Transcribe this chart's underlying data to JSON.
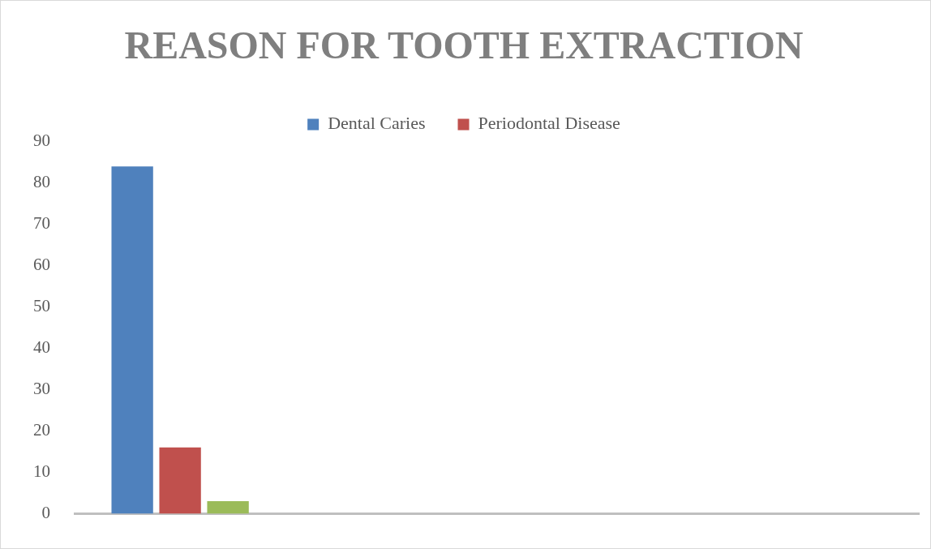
{
  "chart_data": {
    "type": "bar",
    "title": "REASON FOR TOOTH EXTRACTION",
    "categories": [
      null,
      null,
      null,
      null
    ],
    "series": [
      {
        "name": "Dental Caries",
        "color": "#4f81bd",
        "values": [
          84,
          null,
          null,
          null
        ]
      },
      {
        "name": "Periodontal Disease",
        "color": "#c0504d",
        "values": [
          16,
          null,
          null,
          null
        ]
      },
      {
        "color": "#9bbb59",
        "values": [
          3,
          null,
          null,
          null
        ]
      }
    ],
    "ylim": [
      0,
      90
    ],
    "yticks": [
      0,
      10,
      20,
      30,
      40,
      50,
      60,
      70,
      80,
      90
    ],
    "grid": false,
    "legend": "top"
  }
}
